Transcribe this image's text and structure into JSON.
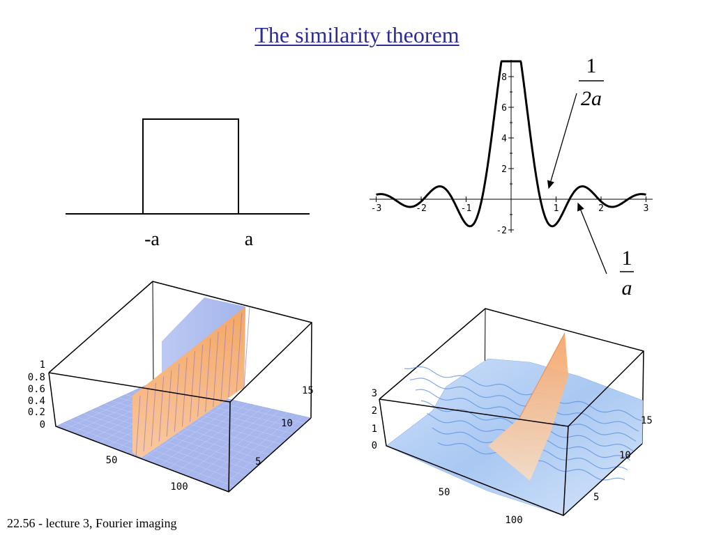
{
  "title": "The similarity theorem",
  "footer": "22.56 - lecture 3, Fourier imaging",
  "rect_diagram": {
    "labels": [
      "-a",
      "a"
    ]
  },
  "sinc_plot": {
    "x_ticks": [
      "-3",
      "-2",
      "-1",
      "1",
      "2",
      "3"
    ],
    "y_ticks": [
      "-2",
      "2",
      "4",
      "6",
      "8"
    ],
    "xlim": [
      -3,
      3
    ],
    "ylim": [
      -2,
      9
    ]
  },
  "annotations": {
    "half_width": {
      "numerator": "1",
      "denominator": "2a"
    },
    "full_width": {
      "numerator": "1",
      "denominator": "a"
    }
  },
  "surface_left": {
    "z_ticks": [
      "0",
      "0.2",
      "0.4",
      "0.6",
      "0.8",
      "1"
    ],
    "x_ticks": [
      "50",
      "100"
    ],
    "y_ticks": [
      "5",
      "10",
      "15"
    ]
  },
  "surface_right": {
    "z_ticks": [
      "0",
      "1",
      "2",
      "3"
    ],
    "x_ticks": [
      "50",
      "100"
    ],
    "y_ticks": [
      "5",
      "10",
      "15"
    ]
  },
  "colors": {
    "title": "#2b2b9a",
    "surface_blue": "#a9b8ee",
    "surface_orange": "#f7b27a",
    "surface_light_blue": "#b9d4f5"
  }
}
